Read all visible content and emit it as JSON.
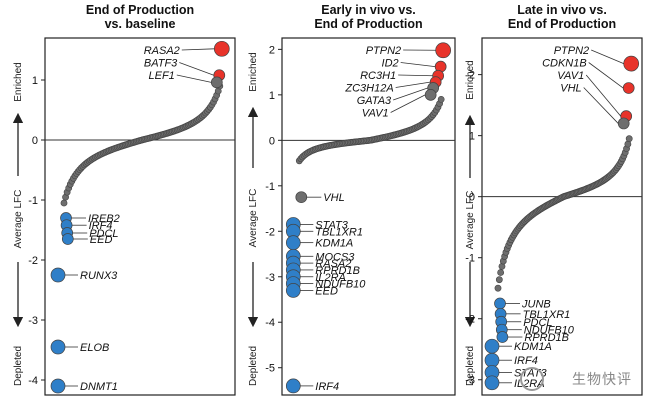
{
  "y_axis": {
    "label": "Average LFC",
    "top_label": "Enriched",
    "bottom_label": "Depleted"
  },
  "colors": {
    "enriched": "#e8332a",
    "depleted": "#2f7fc8",
    "neutral": "#6e6e6e",
    "outline": "#444444"
  },
  "chart_data": [
    {
      "type": "scatter",
      "title": [
        "End of Production",
        "vs. baseline"
      ],
      "ylim": [
        -4.25,
        1.7
      ],
      "yticks": [
        1,
        0,
        -1,
        -2,
        -3,
        -4
      ],
      "n_background": 100,
      "curve": {
        "start": -1.05,
        "end": 0.9
      },
      "highlights": [
        {
          "name": "RASA2",
          "y": 1.52,
          "group": "enriched"
        },
        {
          "name": "BATF3",
          "y": 1.08,
          "group": "enriched"
        },
        {
          "name": "LEF1",
          "y": 0.96,
          "group": "neutral"
        },
        {
          "name": "IREB2",
          "y": -1.3,
          "group": "depleted"
        },
        {
          "name": "IRF4",
          "y": -1.42,
          "group": "depleted"
        },
        {
          "name": "PDCL",
          "y": -1.55,
          "group": "depleted"
        },
        {
          "name": "EED",
          "y": -1.65,
          "group": "depleted"
        },
        {
          "name": "RUNX3",
          "y": -2.25,
          "group": "depleted"
        },
        {
          "name": "ELOB",
          "y": -3.45,
          "group": "depleted"
        },
        {
          "name": "DNMT1",
          "y": -4.1,
          "group": "depleted"
        }
      ]
    },
    {
      "type": "scatter",
      "title": [
        "Early in vivo vs.",
        "End of Production"
      ],
      "ylim": [
        -5.6,
        2.25
      ],
      "yticks": [
        2,
        1,
        0,
        -1,
        -2,
        -3,
        -4,
        -5
      ],
      "n_background": 90,
      "curve": {
        "start": -0.45,
        "end": 0.9
      },
      "highlights": [
        {
          "name": "PTPN2",
          "y": 1.98,
          "group": "enriched"
        },
        {
          "name": "ID2",
          "y": 1.62,
          "group": "enriched"
        },
        {
          "name": "RC3H1",
          "y": 1.42,
          "group": "enriched"
        },
        {
          "name": "ZC3H12A",
          "y": 1.28,
          "group": "enriched"
        },
        {
          "name": "GATA3",
          "y": 1.15,
          "group": "neutral"
        },
        {
          "name": "VAV1",
          "y": 1.0,
          "group": "neutral"
        },
        {
          "name": "VHL",
          "y": -1.25,
          "group": "neutral"
        },
        {
          "name": "STAT3",
          "y": -1.85,
          "group": "depleted"
        },
        {
          "name": "TBL1XR1",
          "y": -2.0,
          "group": "depleted"
        },
        {
          "name": "KDM1A",
          "y": -2.25,
          "group": "depleted"
        },
        {
          "name": "MOCS3",
          "y": -2.55,
          "group": "depleted"
        },
        {
          "name": "RASA2",
          "y": -2.7,
          "group": "depleted"
        },
        {
          "name": "RPRD1B",
          "y": -2.85,
          "group": "depleted"
        },
        {
          "name": "IL2RA",
          "y": -3.0,
          "group": "depleted"
        },
        {
          "name": "NDUFB10",
          "y": -3.15,
          "group": "depleted"
        },
        {
          "name": "EED",
          "y": -3.3,
          "group": "depleted"
        },
        {
          "name": "IRF4",
          "y": -5.4,
          "group": "depleted"
        }
      ]
    },
    {
      "type": "scatter",
      "title": [
        "Late in vivo vs.",
        "End of Production"
      ],
      "ylim": [
        -3.25,
        2.6
      ],
      "yticks": [
        2,
        1,
        0,
        -1,
        -2,
        -3
      ],
      "n_background": 100,
      "curve": {
        "start": -1.5,
        "end": 0.95
      },
      "highlights": [
        {
          "name": "PTPN2",
          "y": 2.18,
          "group": "enriched"
        },
        {
          "name": "CDKN1B",
          "y": 1.78,
          "group": "enriched"
        },
        {
          "name": "VAV1",
          "y": 1.32,
          "group": "enriched"
        },
        {
          "name": "VHL",
          "y": 1.2,
          "group": "neutral"
        },
        {
          "name": "JUNB",
          "y": -1.75,
          "group": "depleted"
        },
        {
          "name": "TBL1XR1",
          "y": -1.92,
          "group": "depleted"
        },
        {
          "name": "PDCL",
          "y": -2.05,
          "group": "depleted"
        },
        {
          "name": "NDUFB10",
          "y": -2.18,
          "group": "depleted"
        },
        {
          "name": "RPRD1B",
          "y": -2.3,
          "group": "depleted"
        },
        {
          "name": "KDM1A",
          "y": -2.45,
          "group": "depleted"
        },
        {
          "name": "IRF4",
          "y": -2.68,
          "group": "depleted"
        },
        {
          "name": "STAT3",
          "y": -2.88,
          "group": "depleted"
        },
        {
          "name": "IL2RA",
          "y": -3.05,
          "group": "depleted"
        }
      ]
    }
  ],
  "watermark": "生物快评"
}
